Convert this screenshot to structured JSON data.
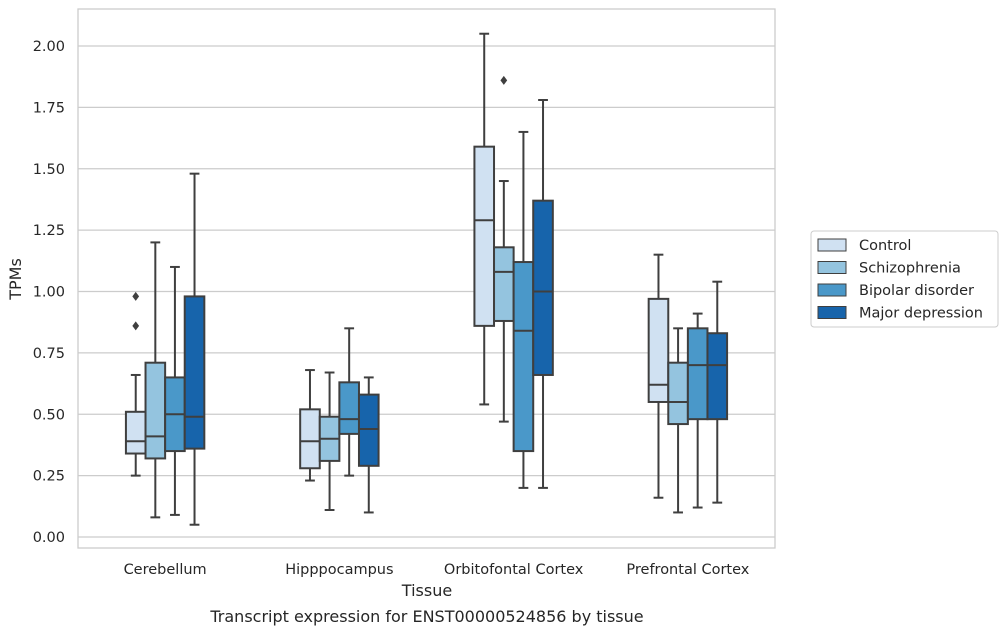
{
  "chart_data": {
    "type": "boxplot",
    "title": "",
    "caption": "Transcript expression for ENST00000524856 by tissue",
    "xlabel": "Tissue",
    "ylabel": "TPMs",
    "ylim": [
      -0.04,
      2.15
    ],
    "yticks": [
      "0.00",
      "0.25",
      "0.50",
      "0.75",
      "1.00",
      "1.25",
      "1.50",
      "1.75",
      "2.00"
    ],
    "grid": "horizontal",
    "legend_position": "right",
    "categories": [
      "Cerebellum",
      "Hipppocampus",
      "Orbitofontal Cortex",
      "Prefrontal Cortex"
    ],
    "series": [
      {
        "name": "Control",
        "color": "#d0e1f2",
        "boxes": [
          {
            "whislo": 0.25,
            "q1": 0.34,
            "med": 0.39,
            "q3": 0.51,
            "whishi": 0.66,
            "fliers": [
              0.86,
              0.98
            ]
          },
          {
            "whislo": 0.23,
            "q1": 0.28,
            "med": 0.39,
            "q3": 0.52,
            "whishi": 0.68,
            "fliers": []
          },
          {
            "whislo": 0.54,
            "q1": 0.86,
            "med": 1.29,
            "q3": 1.59,
            "whishi": 2.05,
            "fliers": []
          },
          {
            "whislo": 0.16,
            "q1": 0.55,
            "med": 0.62,
            "q3": 0.97,
            "whishi": 1.15,
            "fliers": []
          }
        ]
      },
      {
        "name": "Schizophrenia",
        "color": "#94c4df",
        "boxes": [
          {
            "whislo": 0.08,
            "q1": 0.32,
            "med": 0.41,
            "q3": 0.71,
            "whishi": 1.2,
            "fliers": []
          },
          {
            "whislo": 0.11,
            "q1": 0.31,
            "med": 0.4,
            "q3": 0.49,
            "whishi": 0.67,
            "fliers": []
          },
          {
            "whislo": 0.47,
            "q1": 0.88,
            "med": 1.08,
            "q3": 1.18,
            "whishi": 1.45,
            "fliers": [
              1.86
            ]
          },
          {
            "whislo": 0.1,
            "q1": 0.46,
            "med": 0.55,
            "q3": 0.71,
            "whishi": 0.85,
            "fliers": []
          }
        ]
      },
      {
        "name": "Bipolar disorder",
        "color": "#4a98c9",
        "boxes": [
          {
            "whislo": 0.09,
            "q1": 0.35,
            "med": 0.5,
            "q3": 0.65,
            "whishi": 1.1,
            "fliers": []
          },
          {
            "whislo": 0.25,
            "q1": 0.42,
            "med": 0.48,
            "q3": 0.63,
            "whishi": 0.85,
            "fliers": []
          },
          {
            "whislo": 0.2,
            "q1": 0.35,
            "med": 0.84,
            "q3": 1.12,
            "whishi": 1.65,
            "fliers": []
          },
          {
            "whislo": 0.12,
            "q1": 0.48,
            "med": 0.7,
            "q3": 0.85,
            "whishi": 0.91,
            "fliers": []
          }
        ]
      },
      {
        "name": "Major depression",
        "color": "#1764ab",
        "boxes": [
          {
            "whislo": 0.05,
            "q1": 0.36,
            "med": 0.49,
            "q3": 0.98,
            "whishi": 1.48,
            "fliers": []
          },
          {
            "whislo": 0.1,
            "q1": 0.29,
            "med": 0.44,
            "q3": 0.58,
            "whishi": 0.65,
            "fliers": []
          },
          {
            "whislo": 0.2,
            "q1": 0.66,
            "med": 1.0,
            "q3": 1.37,
            "whishi": 1.78,
            "fliers": []
          },
          {
            "whislo": 0.14,
            "q1": 0.48,
            "med": 0.7,
            "q3": 0.83,
            "whishi": 1.04,
            "fliers": []
          }
        ]
      }
    ]
  }
}
